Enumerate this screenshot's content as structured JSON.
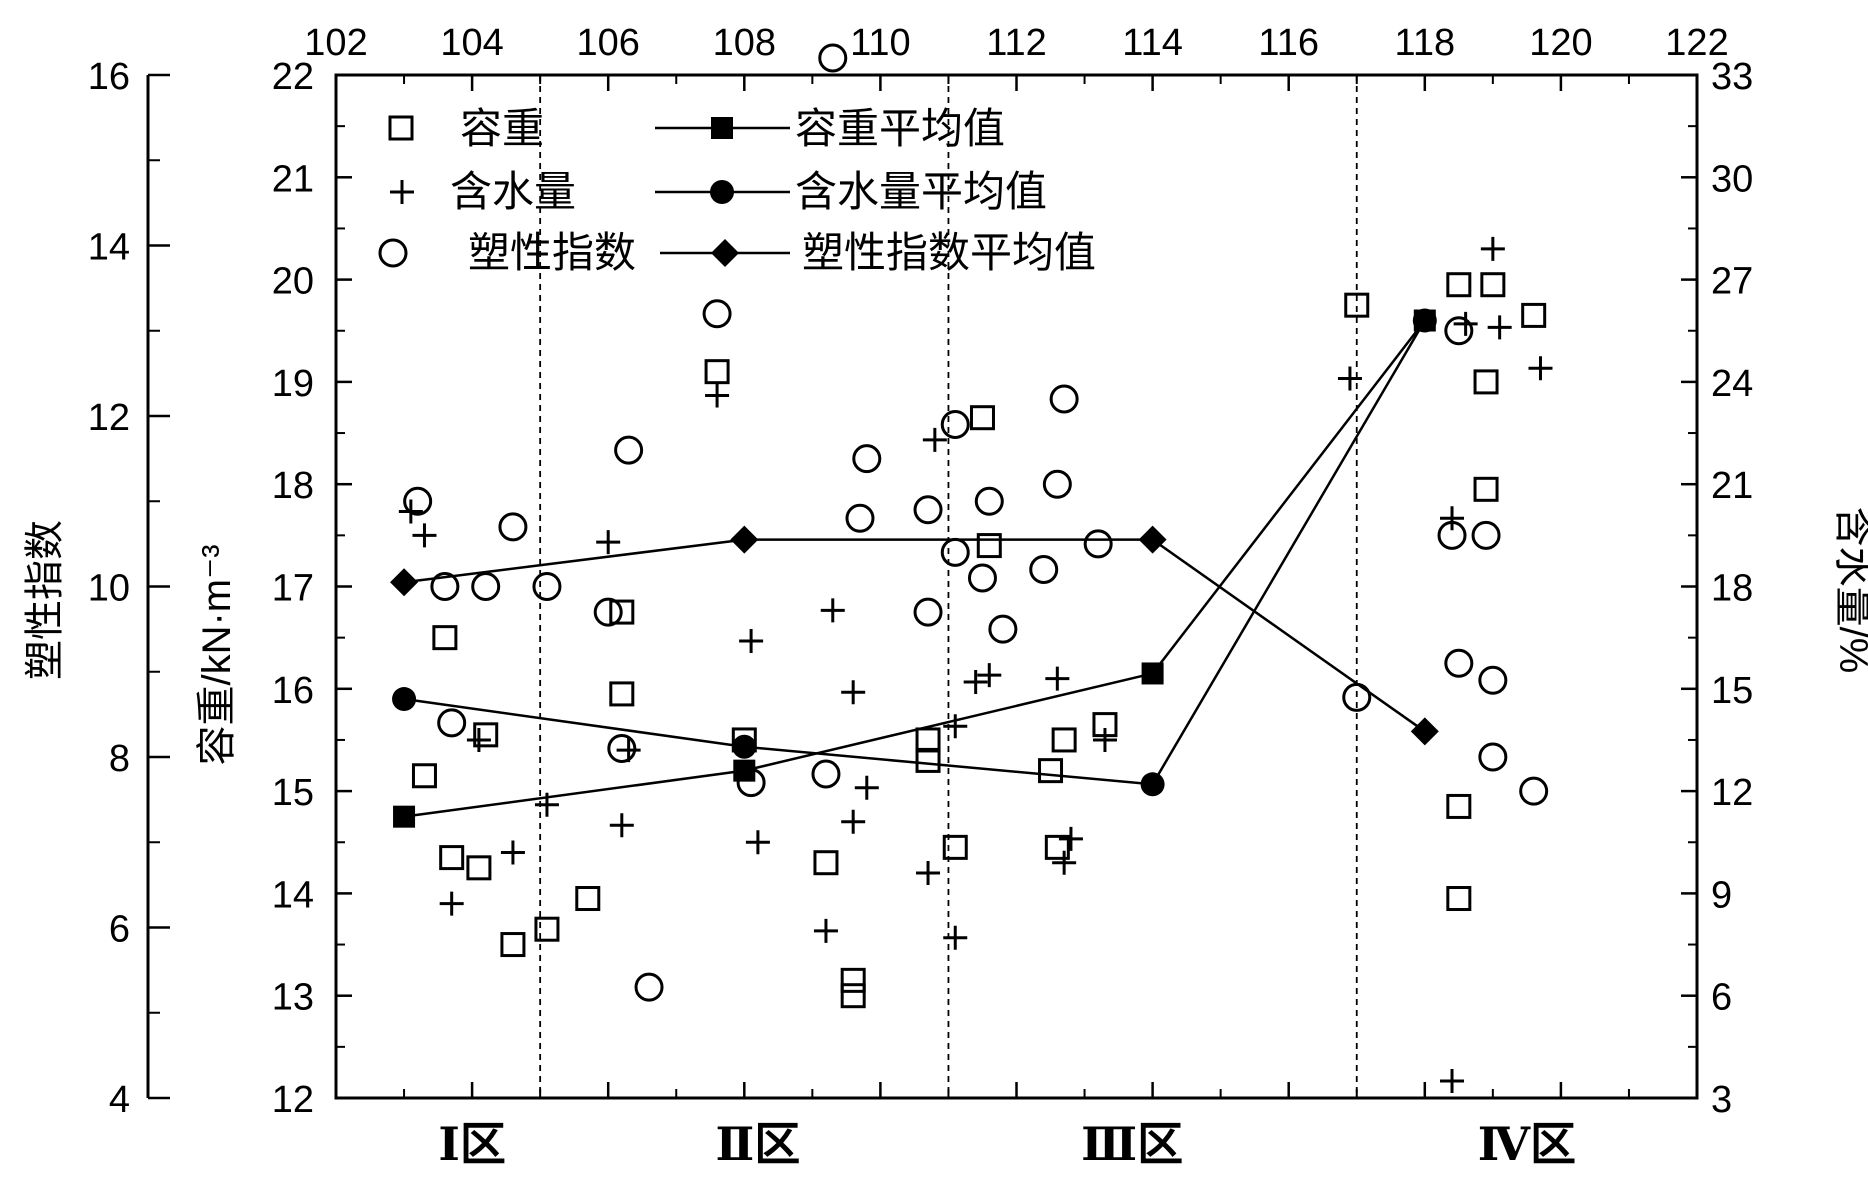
{
  "chart_data": {
    "type": "scatter",
    "x_top": {
      "ticks": [
        102,
        104,
        106,
        108,
        110,
        112,
        114,
        116,
        118,
        120,
        122
      ],
      "range": [
        102,
        122
      ]
    },
    "y_bulk_density": {
      "label": "容重/kN·m⁻³",
      "range": [
        12,
        22
      ],
      "ticks": [
        12,
        13,
        14,
        15,
        16,
        17,
        18,
        19,
        20,
        21,
        22
      ]
    },
    "y_plasticity": {
      "label": "塑性指数",
      "range": [
        4,
        16
      ],
      "ticks": [
        4,
        6,
        8,
        10,
        12,
        14,
        16
      ]
    },
    "y_moisture": {
      "label": "含水量/%",
      "range": [
        3,
        33
      ],
      "ticks": [
        3,
        6,
        9,
        12,
        15,
        18,
        21,
        24,
        27,
        30,
        33
      ]
    },
    "region_boundaries": [
      105,
      111,
      117
    ],
    "regions": [
      {
        "label": "Ⅰ区",
        "x": 104
      },
      {
        "label": "Ⅱ区",
        "x": 108.2
      },
      {
        "label": "Ⅲ区",
        "x": 113.7
      },
      {
        "label": "Ⅳ区",
        "x": 119.5
      }
    ],
    "legend": [
      {
        "key": "bulk",
        "text": "容重"
      },
      {
        "key": "bulk_avg",
        "text": "容重平均值"
      },
      {
        "key": "moist",
        "text": "含水量"
      },
      {
        "key": "moist_avg",
        "text": "含水量平均值"
      },
      {
        "key": "pi",
        "text": "塑性指数"
      },
      {
        "key": "pi_avg",
        "text": "塑性指数平均值"
      }
    ],
    "series": {
      "bulk": {
        "name": "容重",
        "points": [
          [
            103.3,
            15.15
          ],
          [
            103.6,
            16.5
          ],
          [
            103.7,
            14.35
          ],
          [
            104.1,
            14.25
          ],
          [
            104.2,
            15.55
          ],
          [
            104.6,
            13.5
          ],
          [
            105.1,
            13.65
          ],
          [
            105.7,
            13.95
          ],
          [
            106.2,
            16.75
          ],
          [
            106.2,
            15.95
          ],
          [
            107.6,
            19.1
          ],
          [
            108,
            15.5
          ],
          [
            109.2,
            14.3
          ],
          [
            109.6,
            13
          ],
          [
            109.6,
            13.15
          ],
          [
            110.7,
            15.5
          ],
          [
            110.7,
            15.3
          ],
          [
            111.1,
            14.45
          ],
          [
            111.5,
            18.65
          ],
          [
            111.6,
            17.4
          ],
          [
            112.5,
            15.2
          ],
          [
            112.6,
            14.45
          ],
          [
            112.7,
            15.5
          ],
          [
            113.3,
            15.65
          ],
          [
            117,
            19.75
          ],
          [
            118.5,
            13.95
          ],
          [
            118.5,
            19.95
          ],
          [
            118.5,
            14.85
          ],
          [
            118.9,
            17.95
          ],
          [
            118.9,
            19
          ],
          [
            119,
            19.95
          ],
          [
            119.6,
            19.65
          ]
        ]
      },
      "moist": {
        "name": "含水量",
        "points": [
          [
            103.1,
            20.2
          ],
          [
            103.3,
            19.5
          ],
          [
            103.7,
            8.7
          ],
          [
            104.1,
            13.5
          ],
          [
            104.6,
            10.2
          ],
          [
            105.1,
            11.6
          ],
          [
            106,
            19.3
          ],
          [
            106.3,
            13.2
          ],
          [
            106.2,
            11
          ],
          [
            107.6,
            23.6
          ],
          [
            108.1,
            16.4
          ],
          [
            108.2,
            10.5
          ],
          [
            109.2,
            7.9
          ],
          [
            109.3,
            17.3
          ],
          [
            109.6,
            14.9
          ],
          [
            109.6,
            11.1
          ],
          [
            109.8,
            12.1
          ],
          [
            110.7,
            9.6
          ],
          [
            110.8,
            22.3
          ],
          [
            111.1,
            13.9
          ],
          [
            111.1,
            7.7
          ],
          [
            111.4,
            15.2
          ],
          [
            111.6,
            15.4
          ],
          [
            112.6,
            15.3
          ],
          [
            112.7,
            9.9
          ],
          [
            112.8,
            10.6
          ],
          [
            113.3,
            13.5
          ],
          [
            116.9,
            24.1
          ],
          [
            118.4,
            20
          ],
          [
            118.4,
            3.5
          ],
          [
            118.6,
            25.7
          ],
          [
            119,
            27.9
          ],
          [
            119.1,
            25.6
          ],
          [
            119.7,
            24.4
          ]
        ]
      },
      "pi": {
        "name": "塑性指数",
        "points": [
          [
            103.2,
            11
          ],
          [
            103.6,
            10
          ],
          [
            103.7,
            8.4
          ],
          [
            104.2,
            10
          ],
          [
            104.6,
            10.7
          ],
          [
            105.1,
            10
          ],
          [
            106,
            9.7
          ],
          [
            106.3,
            11.6
          ],
          [
            106.2,
            8.1
          ],
          [
            106.6,
            5.3
          ],
          [
            107.6,
            13.2
          ],
          [
            108.1,
            7.7
          ],
          [
            109.2,
            7.8
          ],
          [
            109.3,
            16.2
          ],
          [
            109.7,
            10.8
          ],
          [
            109.8,
            11.5
          ],
          [
            110.7,
            10.9
          ],
          [
            110.7,
            9.7
          ],
          [
            111.1,
            11.9
          ],
          [
            111.1,
            10.4
          ],
          [
            111.5,
            10.1
          ],
          [
            111.6,
            11
          ],
          [
            111.8,
            9.5
          ],
          [
            112.4,
            10.2
          ],
          [
            112.6,
            11.2
          ],
          [
            112.7,
            12.2
          ],
          [
            113.2,
            10.5
          ],
          [
            117,
            8.7
          ],
          [
            118.4,
            10.6
          ],
          [
            118.5,
            13
          ],
          [
            118.5,
            9.1
          ],
          [
            118.9,
            10.6
          ],
          [
            119,
            8.9
          ],
          [
            119,
            8
          ],
          [
            119.6,
            7.6
          ]
        ]
      }
    },
    "averages": {
      "bulk_avg": {
        "name": "容重平均值",
        "axis": "y_bulk_density",
        "points": [
          [
            103,
            14.75
          ],
          [
            108,
            15.2
          ],
          [
            114,
            16.15
          ],
          [
            118,
            19.6
          ]
        ]
      },
      "moist_avg": {
        "name": "含水量平均值",
        "axis": "y_moisture",
        "points": [
          [
            103,
            14.7
          ],
          [
            108,
            13.3
          ],
          [
            114,
            12.2
          ],
          [
            118,
            25.8
          ]
        ]
      },
      "pi_avg": {
        "name": "塑性指数平均值",
        "axis": "y_plasticity",
        "points": [
          [
            103,
            10.05
          ],
          [
            108,
            10.55
          ],
          [
            114,
            10.55
          ],
          [
            118,
            8.3
          ]
        ]
      }
    }
  }
}
